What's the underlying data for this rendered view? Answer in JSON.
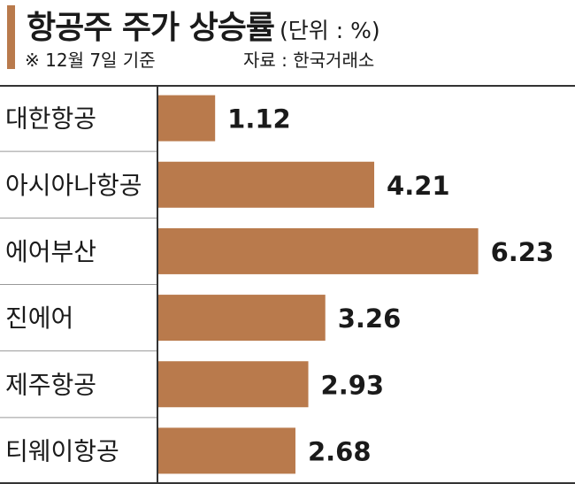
{
  "header": {
    "title": "항공주 주가 상승률",
    "unit": "(단위 : %)",
    "note": "※ 12월 7일 기준",
    "source": "자료 : 한국거래소"
  },
  "chart_data": {
    "type": "bar",
    "orientation": "horizontal",
    "categories": [
      "대한항공",
      "아시아나항공",
      "에어부산",
      "진에어",
      "제주항공",
      "티웨이항공"
    ],
    "values": [
      1.12,
      4.21,
      6.23,
      3.26,
      2.93,
      2.68
    ],
    "value_labels": [
      "1.12",
      "4.21",
      "6.23",
      "3.26",
      "2.93",
      "2.68"
    ],
    "xlim": [
      0,
      7
    ],
    "bar_color": "#b97a4c",
    "accent_color": "#b97a4c",
    "grid": false
  }
}
